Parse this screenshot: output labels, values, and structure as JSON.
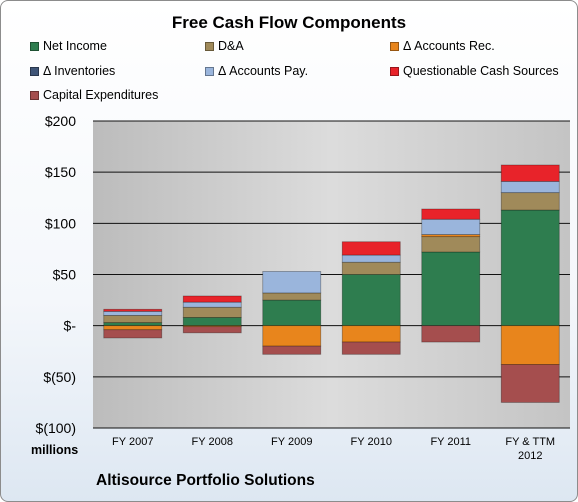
{
  "company": "Altisource Portfolio Solutions",
  "units": "millions",
  "chart_data": {
    "type": "bar",
    "stacked": true,
    "title": "Free Cash Flow Components",
    "categories": [
      "FY 2007",
      "FY 2008",
      "FY 2009",
      "FY 2010",
      "FY 2011",
      "FY & TTM 2012"
    ],
    "ylim": [
      -100,
      200
    ],
    "yticks": [
      200,
      150,
      100,
      50,
      0,
      -50,
      -100
    ],
    "ytick_labels": [
      "$200",
      "$150",
      "$100",
      "$50",
      "$-",
      "$(50)",
      "$(100)"
    ],
    "grid": true,
    "legend_position": "top",
    "series": [
      {
        "name": "Net Income",
        "color": "#2e7d4f",
        "values": [
          3,
          8,
          25,
          50,
          72,
          113
        ]
      },
      {
        "name": "D&A",
        "color": "#a08a5a",
        "values": [
          7,
          10,
          7,
          12,
          15,
          17
        ]
      },
      {
        "name": "Δ Accounts Rec.",
        "color": "#e8851c",
        "values": [
          -4,
          -1,
          -20,
          -16,
          2,
          -38
        ]
      },
      {
        "name": "Δ Inventories",
        "color": "#3f5577",
        "values": [
          0,
          0,
          0,
          0,
          0,
          0
        ]
      },
      {
        "name": "Δ Accounts Pay.",
        "color": "#9ab5dc",
        "values": [
          4,
          5,
          21,
          7,
          15,
          11
        ]
      },
      {
        "name": "Questionable Cash Sources",
        "color": "#e8232a",
        "values": [
          2,
          6,
          0,
          13,
          10,
          16
        ]
      },
      {
        "name": "Capital Expenditures",
        "color": "#a54e4e",
        "values": [
          -8,
          -6,
          -8,
          -12,
          -16,
          -37
        ]
      }
    ]
  }
}
